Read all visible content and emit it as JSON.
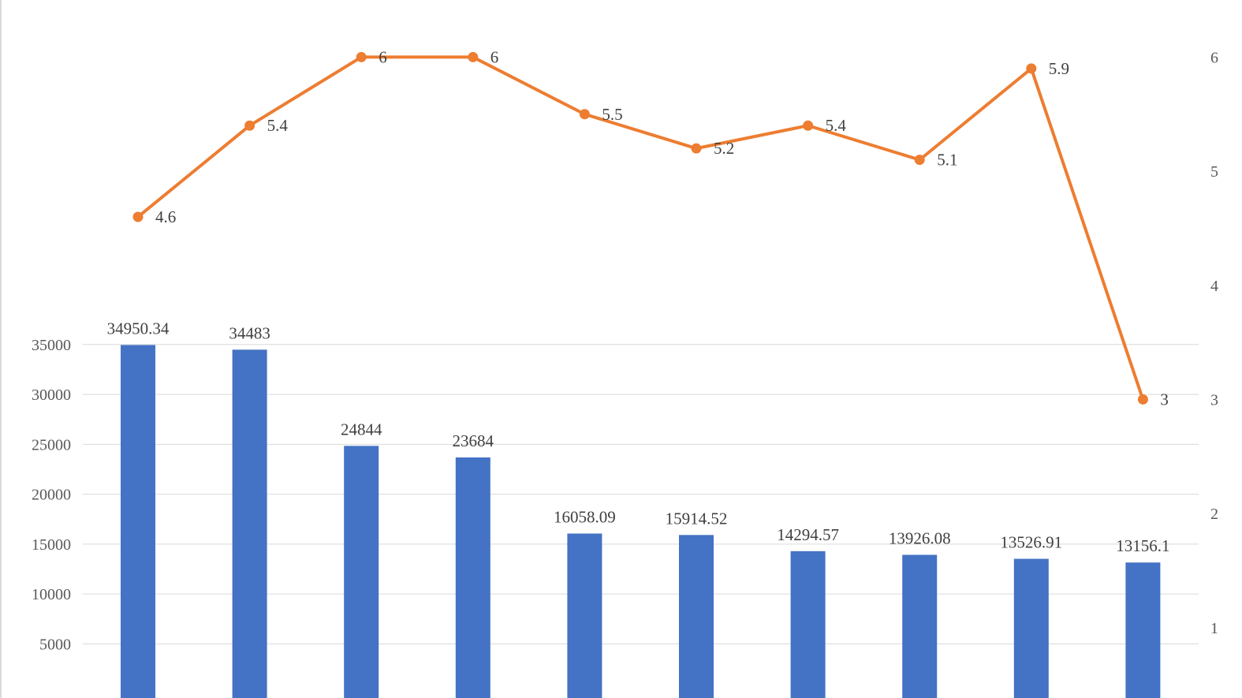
{
  "chart_data": {
    "type": "bar+line",
    "categories": [
      "",
      "",
      "",
      "",
      "",
      "",
      "",
      "",
      "",
      ""
    ],
    "bar_series": {
      "values": [
        34950.34,
        34483,
        24844,
        23684,
        16058.09,
        15914.52,
        14294.57,
        13926.08,
        13526.91,
        13156.1
      ],
      "labels": [
        "34950.34",
        "34483",
        "24844",
        "23684",
        "16058.09",
        "15914.52",
        "14294.57",
        "13926.08",
        "13526.91",
        "13156.1"
      ],
      "color": "#4472C4",
      "axis": "left"
    },
    "line_series": {
      "values": [
        4.6,
        5.4,
        6,
        6,
        5.5,
        5.2,
        5.4,
        5.1,
        5.9,
        3
      ],
      "labels": [
        "4.6",
        "5.4",
        "6",
        "6",
        "5.5",
        "5.2",
        "5.4",
        "5.1",
        "5.9",
        "3"
      ],
      "color": "#ED7D31",
      "axis": "right"
    },
    "left_axis": {
      "ticks": [
        5000,
        10000,
        15000,
        20000,
        25000,
        30000,
        35000
      ],
      "tick_labels": [
        "5000",
        "10000",
        "15000",
        "20000",
        "25000",
        "30000",
        "35000"
      ],
      "range": [
        0,
        35000
      ]
    },
    "right_axis": {
      "ticks": [
        1,
        2,
        3,
        4,
        5,
        6
      ],
      "tick_labels": [
        "1",
        "2",
        "3",
        "4",
        "5",
        "6"
      ],
      "range": [
        0,
        6
      ]
    },
    "gridlines": true,
    "title": "",
    "xlabel": "",
    "ylabel": "",
    "legend": "none"
  }
}
